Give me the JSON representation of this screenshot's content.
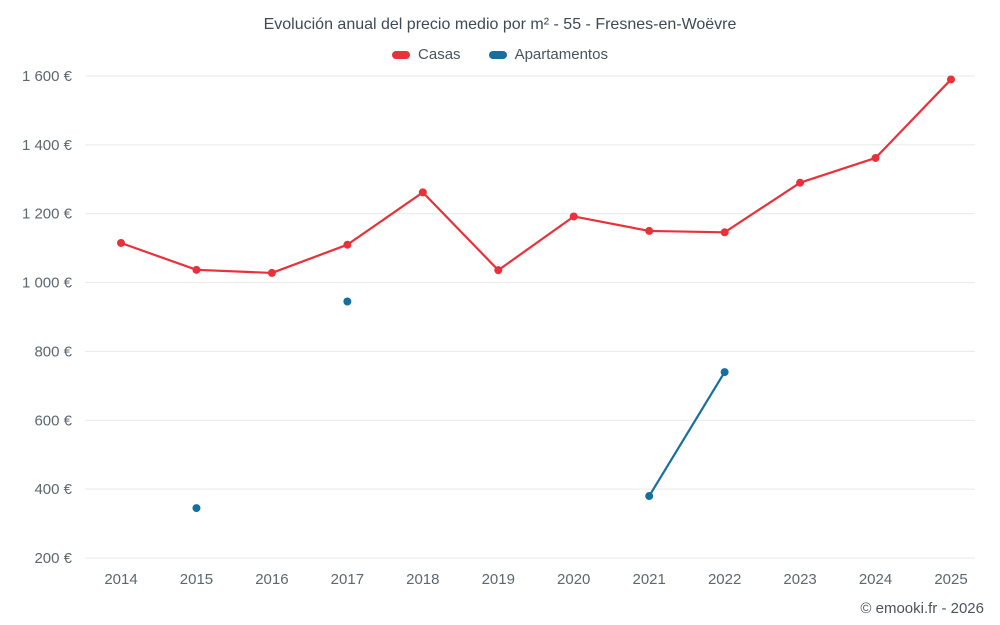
{
  "chart_data": {
    "type": "line",
    "title": "Evolución anual del precio medio por m² - 55 - Fresnes-en-Woëvre",
    "categories": [
      "2014",
      "2015",
      "2016",
      "2017",
      "2018",
      "2019",
      "2020",
      "2021",
      "2022",
      "2023",
      "2024",
      "2025"
    ],
    "series": [
      {
        "name": "Casas",
        "color": "#e8313a",
        "values": [
          1115,
          1037,
          1028,
          1110,
          1262,
          1036,
          1192,
          1150,
          1146,
          1290,
          1362,
          1590
        ]
      },
      {
        "name": "Apartamentos",
        "color": "#15709f",
        "values": [
          null,
          345,
          null,
          945,
          null,
          null,
          null,
          380,
          740,
          null,
          null,
          null
        ]
      }
    ],
    "ylim": [
      200,
      1600
    ],
    "yticks": [
      200,
      400,
      600,
      800,
      1000,
      1200,
      1400,
      1600
    ],
    "ytick_labels": [
      "200 €",
      "400 €",
      "600 €",
      "800 €",
      "1 000 €",
      "1 200 €",
      "1 400 €",
      "1 600 €"
    ],
    "grid": "horizontal",
    "legend_position": "top",
    "axis_text_color": "#5c6770",
    "grid_color": "#e9e9e9"
  },
  "footer": {
    "credit": "© emooki.fr - 2026"
  }
}
